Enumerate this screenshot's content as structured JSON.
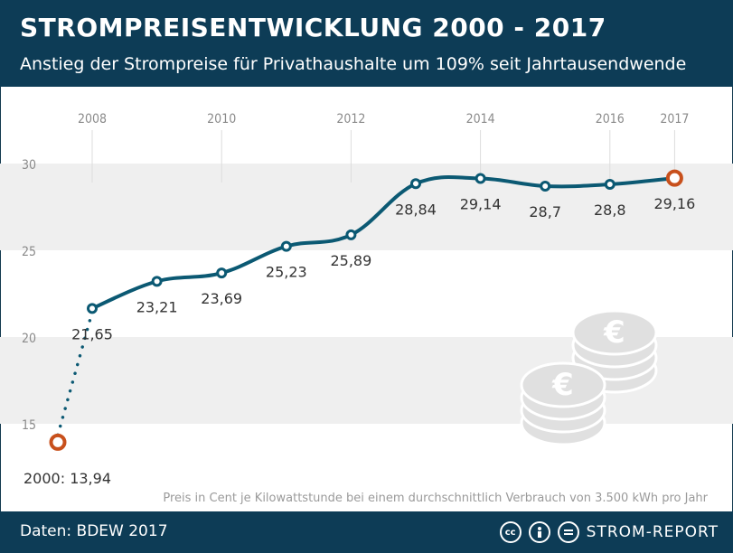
{
  "header": {
    "title": "STROMPREISENTWICKLUNG 2000 - 2017",
    "subtitle": "Anstieg der Strompreise für Privathaushalte um 109% seit Jahrtausendwende"
  },
  "footer": {
    "source": "Daten: BDEW 2017",
    "brand": "STROM-REPORT",
    "icons": [
      "creative-commons-icon",
      "attribution-icon",
      "no-derivatives-icon"
    ]
  },
  "note": "Preis in Cent je Kilowattstunde bei einem durchschnittlich Verbrauch von 3.500 kWh pro Jahr",
  "colors": {
    "header_bg": "#0d3c56",
    "line": "#0b5973",
    "endpoint": "#c8501c",
    "band": "#efefef",
    "coins": "#e0e0e0"
  },
  "chart_data": {
    "type": "line",
    "title": "STROMPREISENTWICKLUNG 2000 - 2017",
    "ylabel": "",
    "xlabel": "",
    "x_ticks": [
      "2008",
      "2010",
      "2012",
      "2014",
      "2016",
      "2017"
    ],
    "y_ticks": [
      15,
      20,
      25,
      30
    ],
    "grid": "alternating horizontal bands",
    "series": [
      {
        "points": [
          {
            "x": 2000,
            "y": 13.94,
            "label": "2000: 13,94",
            "highlight": true
          },
          {
            "x": 2008,
            "y": 21.65,
            "label": "21,65"
          },
          {
            "x": 2009,
            "y": 23.21,
            "label": "23,21"
          },
          {
            "x": 2010,
            "y": 23.69,
            "label": "23,69"
          },
          {
            "x": 2011,
            "y": 25.23,
            "label": "25,23"
          },
          {
            "x": 2012,
            "y": 25.89,
            "label": "25,89"
          },
          {
            "x": 2013,
            "y": 28.84,
            "label": "28,84"
          },
          {
            "x": 2014,
            "y": 29.14,
            "label": "29,14"
          },
          {
            "x": 2015,
            "y": 28.7,
            "label": "28,7"
          },
          {
            "x": 2016,
            "y": 28.8,
            "label": "28,8"
          },
          {
            "x": 2017,
            "y": 29.16,
            "label": "29,16",
            "highlight": true
          }
        ]
      }
    ]
  }
}
